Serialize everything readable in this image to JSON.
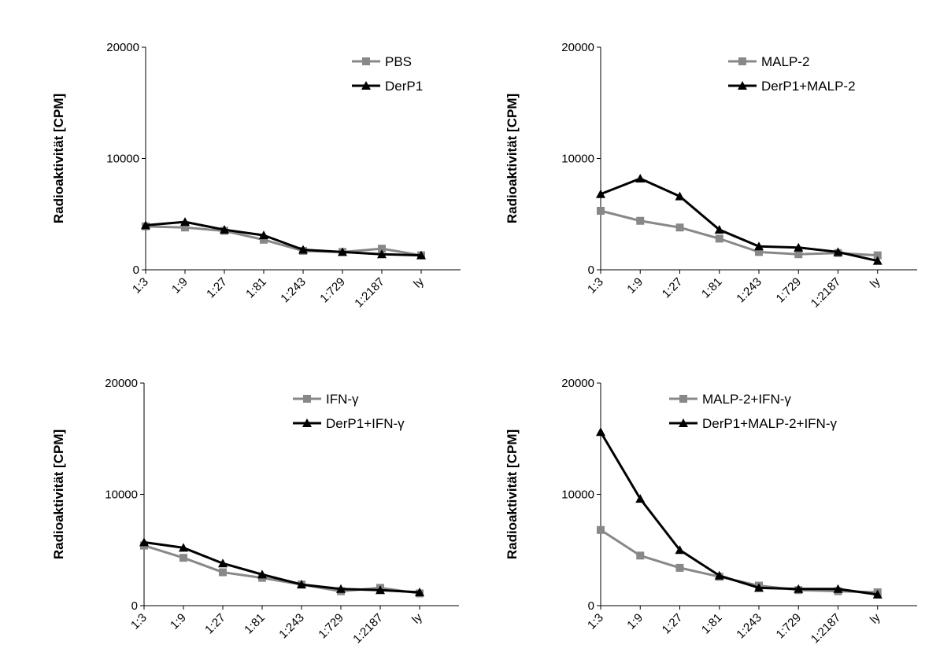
{
  "chart_data": [
    {
      "type": "line",
      "categories": [
        "1:3",
        "1:9",
        "1:27",
        "1:81",
        "1:243",
        "1:729",
        "1:2187",
        "ly"
      ],
      "ylabel": "Radioaktivität [CPM]",
      "ylim": [
        0,
        20000
      ],
      "yticks": [
        "0",
        "10000",
        "20000"
      ],
      "legend_position": "top-right",
      "series": [
        {
          "name": "PBS",
          "color": "#888888",
          "marker": "square",
          "values": [
            3900,
            3800,
            3500,
            2700,
            1700,
            1600,
            1900,
            1300
          ]
        },
        {
          "name": "DerP1",
          "color": "#000000",
          "marker": "triangle",
          "values": [
            4000,
            4300,
            3600,
            3100,
            1800,
            1600,
            1400,
            1300
          ]
        }
      ]
    },
    {
      "type": "line",
      "categories": [
        "1:3",
        "1:9",
        "1:27",
        "1:81",
        "1:243",
        "1:729",
        "1:2187",
        "ly"
      ],
      "ylabel": "Radioaktivität [CPM]",
      "ylim": [
        0,
        20000
      ],
      "yticks": [
        "0",
        "10000",
        "20000"
      ],
      "legend_position": "top-right",
      "series": [
        {
          "name": "MALP-2",
          "color": "#888888",
          "marker": "square",
          "values": [
            5300,
            4400,
            3800,
            2800,
            1600,
            1400,
            1500,
            1300
          ]
        },
        {
          "name": "DerP1+MALP-2",
          "color": "#000000",
          "marker": "triangle",
          "values": [
            6800,
            8200,
            6600,
            3600,
            2100,
            2000,
            1600,
            800
          ]
        }
      ]
    },
    {
      "type": "line",
      "categories": [
        "1:3",
        "1:9",
        "1:27",
        "1:81",
        "1:243",
        "1:729",
        "1:2187",
        "ly"
      ],
      "ylabel": "Radioaktivität [CPM]",
      "ylim": [
        0,
        20000
      ],
      "yticks": [
        "0",
        "10000",
        "20000"
      ],
      "legend_position": "top-right",
      "series": [
        {
          "name": "IFN-γ",
          "color": "#888888",
          "marker": "square",
          "values": [
            5400,
            4300,
            3000,
            2500,
            1900,
            1300,
            1600,
            1100
          ]
        },
        {
          "name": "DerP1+IFN-γ",
          "color": "#000000",
          "marker": "triangle",
          "values": [
            5700,
            5200,
            3800,
            2800,
            1900,
            1500,
            1400,
            1200
          ]
        }
      ]
    },
    {
      "type": "line",
      "categories": [
        "1:3",
        "1:9",
        "1:27",
        "1:81",
        "1:243",
        "1:729",
        "1:2187",
        "ly"
      ],
      "ylabel": "Radioaktivität [CPM]",
      "ylim": [
        0,
        20000
      ],
      "yticks": [
        "0",
        "10000",
        "20000"
      ],
      "legend_position": "top-right",
      "series": [
        {
          "name": "MALP-2+IFN-γ",
          "color": "#888888",
          "marker": "square",
          "values": [
            6800,
            4500,
            3400,
            2600,
            1800,
            1400,
            1300,
            1200
          ]
        },
        {
          "name": "DerP1+MALP-2+IFN-γ",
          "color": "#000000",
          "marker": "triangle",
          "values": [
            15600,
            9600,
            5000,
            2700,
            1600,
            1500,
            1500,
            1000
          ]
        }
      ]
    }
  ]
}
